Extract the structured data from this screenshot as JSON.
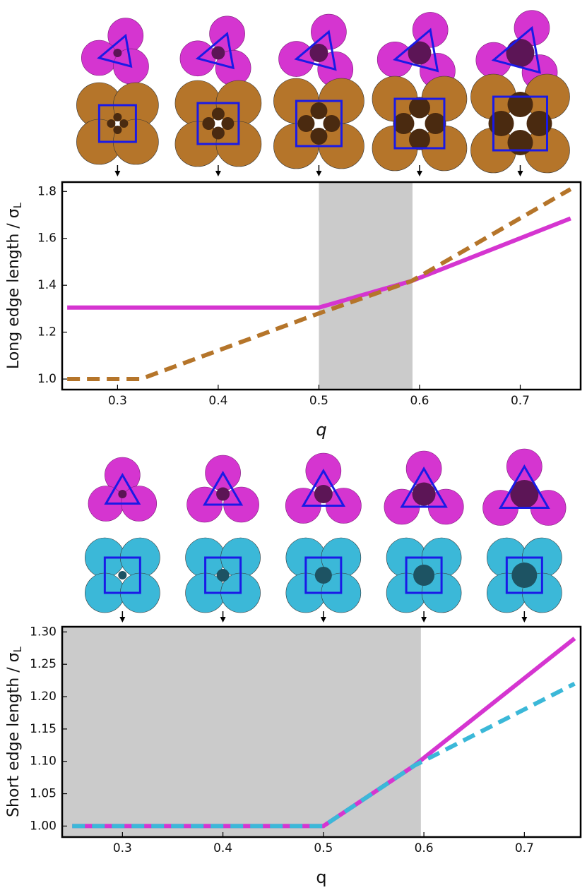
{
  "chart_data": [
    {
      "type": "line",
      "ylabel": "Long edge length / σ",
      "ylabel_sub": "L",
      "xlabel": "q",
      "x": [
        0.25,
        0.323,
        0.5,
        0.592,
        0.75
      ],
      "series": [
        {
          "color": "#d535d0",
          "dashed": false,
          "values": [
            1.305,
            1.305,
            1.305,
            1.418,
            1.685
          ]
        },
        {
          "color": "#b5752a",
          "dashed": true,
          "values": [
            1.0,
            1.0,
            1.28,
            1.418,
            1.81
          ]
        }
      ],
      "xlim": [
        0.245,
        0.76
      ],
      "ylim": [
        0.955,
        1.84
      ],
      "xticks": [
        0.3,
        0.4,
        0.5,
        0.6,
        0.7
      ],
      "yticks": [
        {
          "value": 1,
          "label": "1.0"
        },
        1.2,
        1.4,
        1.6,
        1.8
      ],
      "shade": [
        0.5,
        0.593
      ],
      "shade_color": "#cbcbcb"
    },
    {
      "type": "line",
      "ylabel": "Short edge length / σ",
      "ylabel_sub": "L",
      "xlabel": "q",
      "x": [
        0.25,
        0.5,
        0.59,
        0.75
      ],
      "series": [
        {
          "color": "#d535d0",
          "dashed": false,
          "values": [
            1.0,
            1.0,
            1.093,
            1.29
          ]
        },
        {
          "color": "#3bb8d8",
          "dashed": true,
          "values": [
            1.0,
            1.0,
            1.093,
            1.22
          ]
        }
      ],
      "xlim": [
        0.24,
        0.756
      ],
      "ylim": [
        0.983,
        1.308
      ],
      "xticks": [
        0.3,
        0.4,
        0.5,
        0.6,
        0.7
      ],
      "yticks": [
        {
          "value": 1,
          "label": "1.00"
        },
        1.05,
        {
          "value": 1.1,
          "label": "1.10"
        },
        1.15,
        {
          "value": 1.2,
          "label": "1.20"
        },
        1.25,
        {
          "value": 1.3,
          "label": "1.30"
        }
      ],
      "shade": [
        0.24,
        0.597
      ],
      "shade_color": "#cbcbcb"
    }
  ]
}
